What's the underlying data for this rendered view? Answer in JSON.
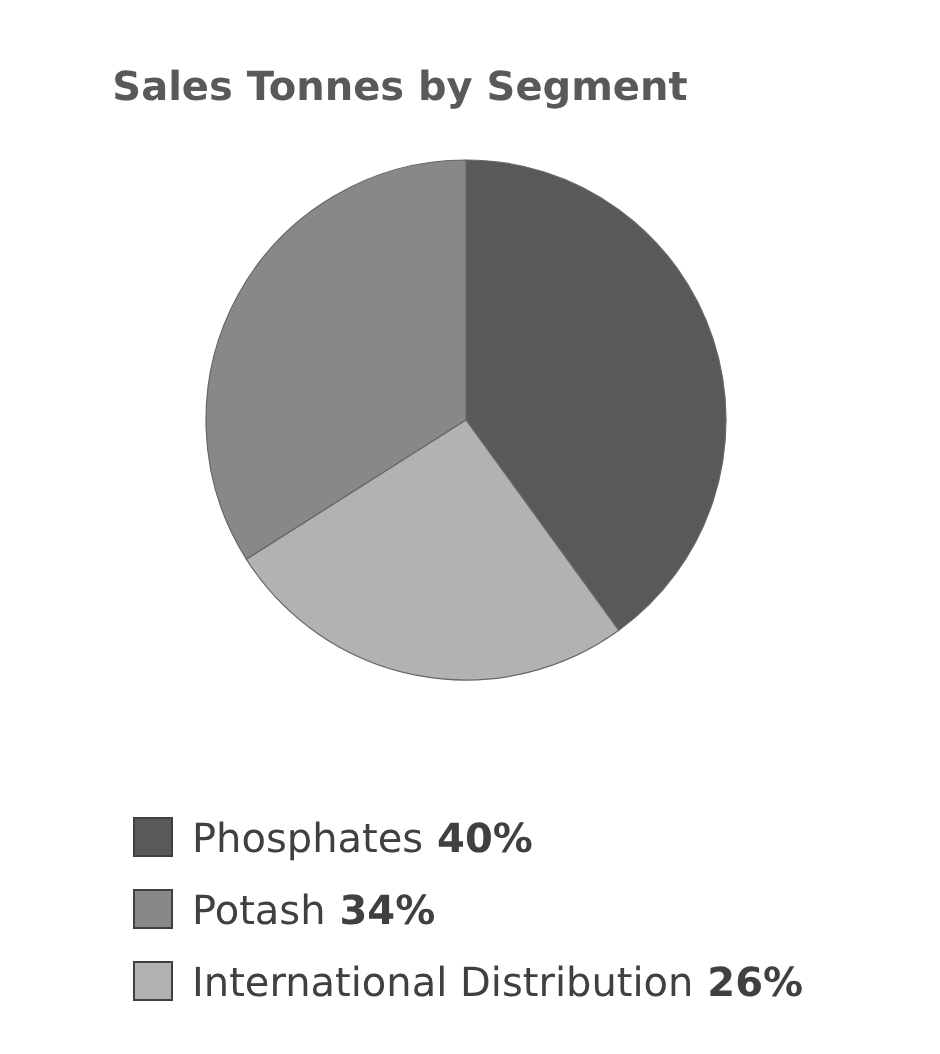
{
  "chart_data": {
    "type": "pie",
    "title": "Sales Tonnes by Segment",
    "categories": [
      "Phosphates",
      "Potash",
      "International Distribution"
    ],
    "values": [
      40,
      34,
      26
    ],
    "colors": [
      "#595959",
      "#888888",
      "#b2b2b2"
    ],
    "value_labels": [
      "40%",
      "34%",
      "26%"
    ],
    "legend": "bottom"
  }
}
